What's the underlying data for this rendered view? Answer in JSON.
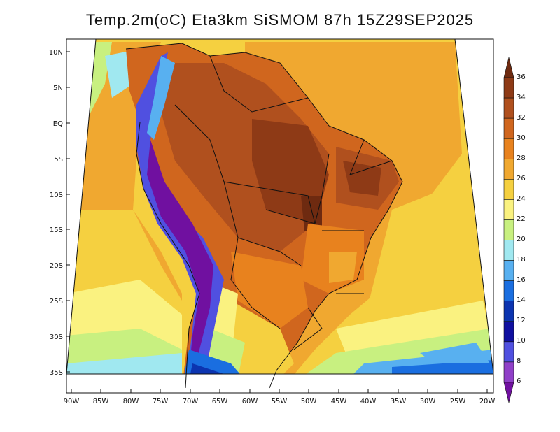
{
  "title": "Temp.2m(oC) Eta3km SiSMOM 87h 15Z29SEP2025",
  "lat_labels": [
    "10N",
    "5N",
    "EQ",
    "5S",
    "10S",
    "15S",
    "20S",
    "25S",
    "30S",
    "35S"
  ],
  "lon_labels": [
    "90W",
    "85W",
    "80W",
    "75W",
    "70W",
    "65W",
    "60W",
    "55W",
    "50W",
    "45W",
    "40W",
    "35W",
    "30W",
    "25W",
    "20W"
  ],
  "colorbar": {
    "labels": [
      "36",
      "34",
      "32",
      "30",
      "28",
      "26",
      "24",
      "22",
      "20",
      "18",
      "16",
      "14",
      "12",
      "10",
      "8",
      "6"
    ],
    "colors": [
      "#6e2a10",
      "#8e3a16",
      "#b0501e",
      "#d0661e",
      "#e8821e",
      "#f0a830",
      "#f5d040",
      "#faf280",
      "#c8f080",
      "#a0e8f0",
      "#58b0f0",
      "#1a6ee0",
      "#0c34b0",
      "#1010a0",
      "#5050e0",
      "#9040c8",
      "#7010a0"
    ]
  },
  "field_colors": {
    "ocean_warm": "#f5d040",
    "ocean_mild": "#faf280",
    "ocean_cool": "#c8f080",
    "ocean_cold": "#58b0f0",
    "land_hot": "#b0501e",
    "land_very_hot": "#8e3a16",
    "land_warm": "#d0661e",
    "andes_cold": "#5050e0",
    "andes_very_cold": "#7010a0"
  }
}
